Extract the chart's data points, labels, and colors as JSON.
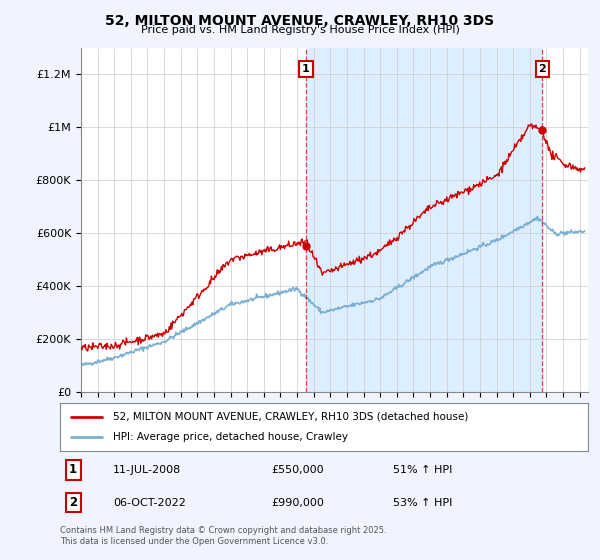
{
  "title": "52, MILTON MOUNT AVENUE, CRAWLEY, RH10 3DS",
  "subtitle": "Price paid vs. HM Land Registry's House Price Index (HPI)",
  "ylabel_ticks": [
    "£0",
    "£200K",
    "£400K",
    "£600K",
    "£800K",
    "£1M",
    "£1.2M"
  ],
  "ytick_values": [
    0,
    200000,
    400000,
    600000,
    800000,
    1000000,
    1200000
  ],
  "ylim": [
    0,
    1300000
  ],
  "xlim_start": 1995.0,
  "xlim_end": 2025.5,
  "sale1_date": 2008.53,
  "sale1_price": 550000,
  "sale1_label": "11-JUL-2008",
  "sale1_amount": "£550,000",
  "sale1_pct": "51% ↑ HPI",
  "sale2_date": 2022.76,
  "sale2_price": 990000,
  "sale2_label": "06-OCT-2022",
  "sale2_amount": "£990,000",
  "sale2_pct": "53% ↑ HPI",
  "line_color_red": "#cc0000",
  "line_color_blue": "#7aafd4",
  "annotation_box_color": "#cc0000",
  "shade_color": "#ddeeff",
  "legend_label_red": "52, MILTON MOUNT AVENUE, CRAWLEY, RH10 3DS (detached house)",
  "legend_label_blue": "HPI: Average price, detached house, Crawley",
  "footer": "Contains HM Land Registry data © Crown copyright and database right 2025.\nThis data is licensed under the Open Government Licence v3.0.",
  "bg_color": "#f0f4ff",
  "plot_bg_color": "#ffffff",
  "grid_color": "#cccccc"
}
